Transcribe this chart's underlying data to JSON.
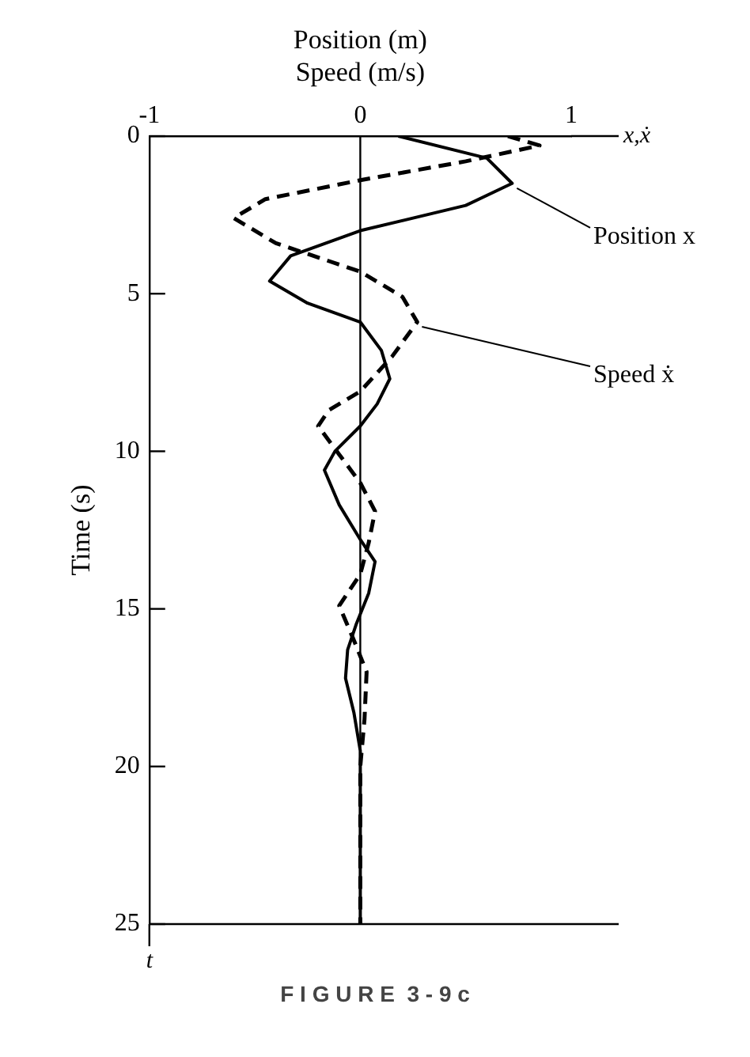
{
  "chart_data": {
    "type": "line",
    "xlabel": "Position (m)\nSpeed (m/s)",
    "ylabel": "Time (s)",
    "xlim": [
      -1,
      1
    ],
    "xticks": [
      -1,
      0,
      1
    ],
    "ylim": [
      25,
      0
    ],
    "yticks": [
      0,
      5,
      10,
      15,
      20,
      25
    ],
    "grid": false,
    "ref_lines": [
      {
        "axis": "x",
        "value": 0,
        "color": "#000000"
      }
    ],
    "annotations": [
      "x,ẋ",
      "t",
      "F I G U R E  3 - 9 c"
    ],
    "series": [
      {
        "name": "Position x",
        "color": "#000000",
        "line_style": "solid",
        "x": [
          0.18,
          0.6,
          0.72,
          0.5,
          0,
          -0.33,
          -0.43,
          -0.25,
          0,
          0.1,
          0.14,
          0.08,
          0,
          -0.12,
          -0.17,
          -0.1,
          0,
          0.07,
          0.04,
          -0.02,
          -0.06,
          -0.07,
          -0.03,
          0,
          0
        ],
        "values": [
          0,
          0.7,
          1.5,
          2.2,
          3.0,
          3.8,
          4.6,
          5.3,
          5.9,
          6.8,
          7.7,
          8.5,
          9.2,
          10.0,
          10.6,
          11.7,
          12.8,
          13.5,
          14.5,
          15.5,
          16.3,
          17.2,
          18.3,
          19.5,
          25
        ]
      },
      {
        "name": "Speed ẋ",
        "color": "#000000",
        "line_style": "dashed",
        "x": [
          0.7,
          0.85,
          0.5,
          0,
          -0.45,
          -0.6,
          -0.4,
          0,
          0.2,
          0.27,
          0.15,
          0,
          -0.15,
          -0.2,
          -0.1,
          0,
          0.07,
          0.04,
          0,
          -0.1,
          -0.03,
          0.03,
          0.02,
          0,
          0
        ],
        "values": [
          0,
          0.3,
          0.8,
          1.4,
          2.0,
          2.6,
          3.4,
          4.3,
          5.1,
          5.9,
          7.0,
          8.1,
          8.7,
          9.2,
          10.1,
          11,
          11.9,
          12.9,
          13.9,
          14.9,
          16,
          17,
          18.5,
          20,
          25
        ]
      }
    ]
  }
}
